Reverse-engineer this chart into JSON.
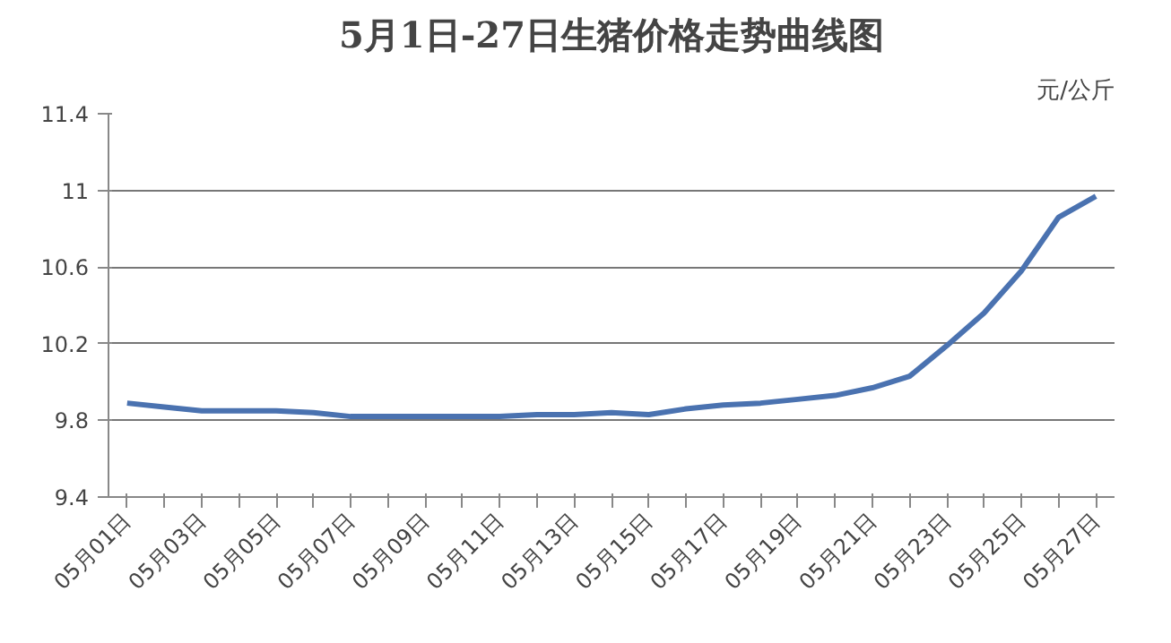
{
  "chart_data": {
    "type": "line",
    "title": "5月1日-27日生猪价格走势曲线图",
    "ylabel": "元/公斤",
    "categories": [
      "05月01日",
      null,
      "05月03日",
      null,
      "05月05日",
      null,
      "05月07日",
      null,
      "05月09日",
      null,
      "05月11日",
      null,
      "05月13日",
      null,
      "05月15日",
      null,
      "05月17日",
      null,
      "05月19日",
      null,
      "05月21日",
      null,
      "05月23日",
      null,
      "05月25日",
      null,
      "05月27日"
    ],
    "series": [
      {
        "color": "#4a72b0",
        "values": [
          9.89,
          9.87,
          9.85,
          9.85,
          9.85,
          9.84,
          9.82,
          9.82,
          9.82,
          9.82,
          9.82,
          9.83,
          9.83,
          9.84,
          9.83,
          9.86,
          9.88,
          9.89,
          9.91,
          9.93,
          9.97,
          10.03,
          10.19,
          10.36,
          10.58,
          10.86,
          10.97
        ]
      }
    ],
    "ylim": [
      9.4,
      11.4
    ],
    "yticks": [
      9.4,
      9.8,
      10.2,
      10.6,
      11,
      11.4
    ],
    "grid": "y",
    "marker": "none",
    "line_style": "solid"
  }
}
